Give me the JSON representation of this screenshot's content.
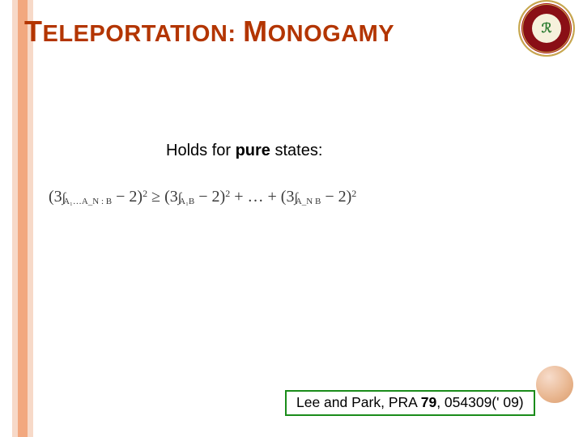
{
  "colors": {
    "title_color": "#b33500",
    "stripe_outer": "#f7d9c8",
    "stripe_inner": "#f2a87f",
    "citation_border": "#1a8c1a",
    "equation_color": "#3a3a3a",
    "background": "#ffffff"
  },
  "title": {
    "word1_cap": "T",
    "word1_rest": "ELEPORTATION",
    "sep": ": ",
    "word2_cap": "M",
    "word2_rest": "ONOGAMY"
  },
  "subtitle": {
    "pre": "Holds for ",
    "bold": "pure",
    "post": " states:"
  },
  "equation": {
    "lhs_coef": "3",
    "lhs_sub": "A₁…A_N : B",
    "lhs_minus": " − 2",
    "lhs_exp": "2",
    "rel": " ≥ ",
    "t1_coef": "3",
    "t1_sub": "A₁B",
    "t1_minus": " − 2",
    "t1_exp": "2",
    "mid": " + … + ",
    "tN_coef": "3",
    "tN_sub": "A_N B",
    "tN_minus": " − 2",
    "tN_exp": "2"
  },
  "citation": {
    "authors": "Lee and Park, PRA ",
    "volume": "79",
    "rest": ", 054309(' 09)"
  },
  "logo": {
    "center_glyph": "ℛ"
  }
}
